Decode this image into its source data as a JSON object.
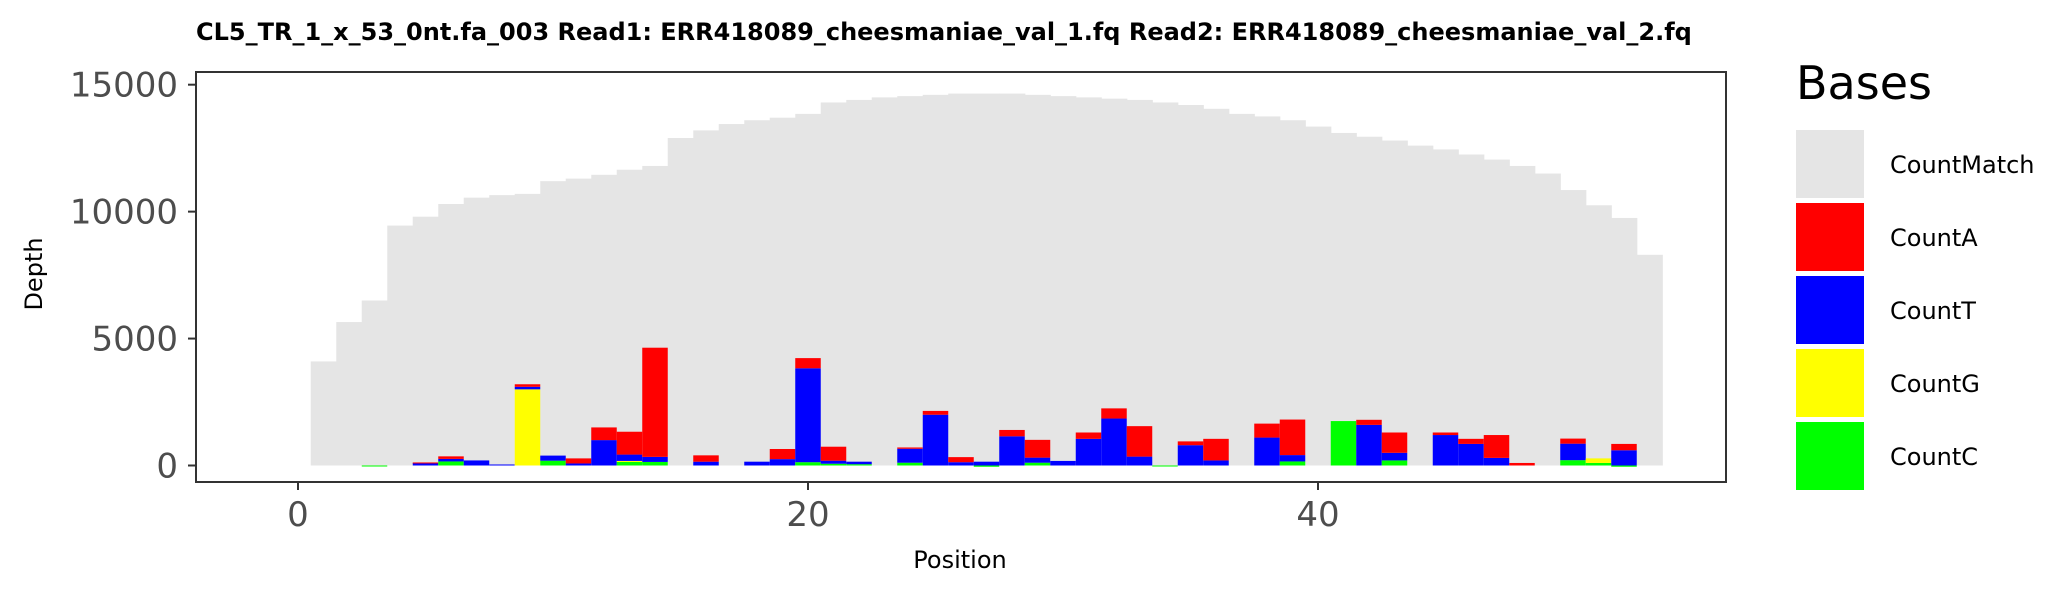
{
  "chart_data": {
    "type": "bar",
    "stacked": true,
    "title": "CL5_TR_1_x_53_0nt.fa_003   Read1: ERR418089_cheesmaniae_val_1.fq   Read2: ERR418089_cheesmaniae_val_2.fq",
    "xlabel": "Position",
    "ylabel": "Depth",
    "xlim": [
      -4,
      56
    ],
    "ylim": [
      -650,
      15500
    ],
    "x_ticks": [
      0,
      20,
      40
    ],
    "x_tick_labels": [
      "0",
      "20",
      "40"
    ],
    "y_ticks": [
      0,
      5000,
      10000,
      15000
    ],
    "y_tick_labels": [
      "0",
      "5000",
      "10000",
      "15000"
    ],
    "grid": false,
    "legend": {
      "title": "Bases",
      "position": "right"
    },
    "colors": {
      "CountMatch": "#e5e5e5",
      "CountA": "#ff0000",
      "CountT": "#0000ff",
      "CountG": "#ffff00",
      "CountC": "#00ff00"
    },
    "total_depth": {
      "x": [
        1,
        2,
        3,
        4,
        5,
        6,
        7,
        8,
        9,
        10,
        11,
        12,
        13,
        14,
        15,
        16,
        17,
        18,
        19,
        20,
        21,
        22,
        23,
        24,
        25,
        26,
        27,
        28,
        29,
        30,
        31,
        32,
        33,
        34,
        35,
        36,
        37,
        38,
        39,
        40,
        41,
        42,
        43,
        44,
        45,
        46,
        47,
        48,
        49,
        50,
        51,
        52,
        53
      ],
      "values": [
        4100,
        5650,
        6500,
        9450,
        9800,
        10300,
        10550,
        10650,
        10700,
        11200,
        11300,
        11450,
        11650,
        11800,
        12900,
        13200,
        13450,
        13600,
        13700,
        13850,
        14300,
        14400,
        14500,
        14550,
        14600,
        14650,
        14650,
        14650,
        14600,
        14550,
        14500,
        14450,
        14400,
        14300,
        14200,
        14050,
        13850,
        13750,
        13600,
        13350,
        13100,
        12950,
        12800,
        12600,
        12450,
        12250,
        12050,
        11800,
        11500,
        10850,
        10250,
        9750,
        8300
      ]
    },
    "series": [
      {
        "name": "CountC",
        "values": [
          0,
          0,
          -40,
          0,
          0,
          160,
          0,
          0,
          0,
          190,
          0,
          0,
          140,
          140,
          0,
          0,
          0,
          0,
          0,
          130,
          70,
          50,
          0,
          110,
          0,
          0,
          -50,
          0,
          110,
          0,
          0,
          0,
          0,
          -40,
          0,
          0,
          0,
          0,
          160,
          0,
          1750,
          0,
          200,
          0,
          0,
          0,
          0,
          0,
          0,
          210,
          100,
          -50,
          0
        ]
      },
      {
        "name": "CountG",
        "values": [
          0,
          0,
          0,
          0,
          0,
          0,
          0,
          0,
          3000,
          0,
          0,
          0,
          40,
          0,
          0,
          0,
          0,
          0,
          0,
          0,
          0,
          0,
          0,
          0,
          0,
          0,
          0,
          0,
          0,
          0,
          0,
          0,
          0,
          0,
          0,
          0,
          0,
          0,
          0,
          0,
          0,
          0,
          0,
          0,
          0,
          0,
          0,
          0,
          0,
          0,
          180,
          0,
          0
        ]
      },
      {
        "name": "CountT",
        "values": [
          0,
          0,
          0,
          0,
          100,
          100,
          200,
          40,
          100,
          200,
          80,
          1000,
          250,
          200,
          0,
          150,
          0,
          150,
          250,
          3700,
          120,
          100,
          0,
          550,
          2000,
          130,
          150,
          1150,
          200,
          180,
          1050,
          1850,
          350,
          0,
          800,
          200,
          0,
          1100,
          250,
          0,
          0,
          1600,
          300,
          0,
          1200,
          850,
          300,
          0,
          0,
          650,
          0,
          600,
          0
        ]
      },
      {
        "name": "CountA",
        "values": [
          0,
          0,
          0,
          0,
          20,
          100,
          0,
          0,
          100,
          0,
          200,
          500,
          900,
          4300,
          0,
          250,
          0,
          0,
          400,
          400,
          550,
          0,
          0,
          50,
          150,
          200,
          0,
          250,
          700,
          0,
          250,
          400,
          1200,
          0,
          150,
          850,
          0,
          550,
          1400,
          0,
          0,
          200,
          800,
          0,
          100,
          200,
          900,
          100,
          0,
          200,
          0,
          250,
          0
        ]
      }
    ]
  },
  "legend_items": [
    {
      "label": "CountMatch"
    },
    {
      "label": "CountA"
    },
    {
      "label": "CountT"
    },
    {
      "label": "CountG"
    },
    {
      "label": "CountC"
    }
  ]
}
